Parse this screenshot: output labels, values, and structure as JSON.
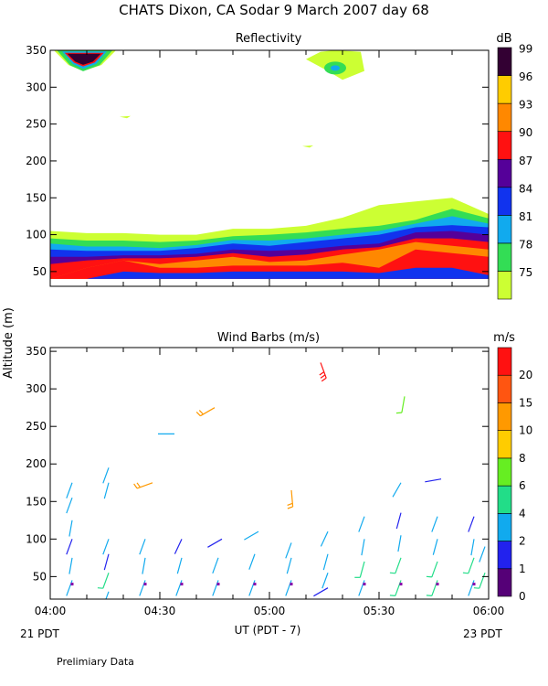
{
  "header": {
    "title": "CHATS Dixon, CA   Sodar    9 March 2007   day  68",
    "ylabel": "Altitude (m)",
    "xlabel": "UT  (PDT - 7)",
    "left_footer": "21 PDT",
    "right_footer": "23 PDT",
    "note": "Prelimiary Data"
  },
  "chart_data": [
    {
      "type": "heatmap",
      "title": "Reflectivity",
      "x_ticks": [
        "04:00",
        "04:30",
        "05:00",
        "05:30",
        "06:00"
      ],
      "y_ticks": [
        50,
        100,
        150,
        200,
        250,
        300,
        350
      ],
      "xlim": [
        "04:00",
        "06:00"
      ],
      "ylim": [
        30,
        350
      ],
      "colorbar": {
        "unit": "dB",
        "levels": [
          75,
          78,
          81,
          84,
          87,
          90,
          93,
          96,
          99
        ],
        "colors": [
          "#ccff33",
          "#33dd55",
          "#11aaee",
          "#1133ee",
          "#550099",
          "#ff1111",
          "#ff8800",
          "#ffcc00",
          "#330033"
        ]
      },
      "time_grid": [
        "04:00",
        "04:10",
        "04:20",
        "04:30",
        "04:40",
        "04:50",
        "05:00",
        "05:10",
        "05:20",
        "05:30",
        "05:40",
        "05:50",
        "06:00"
      ],
      "band_tops_m": [
        [
          40,
          40,
          40,
          40,
          40,
          40,
          40,
          40,
          40,
          40,
          40,
          40,
          40
        ],
        [
          40,
          40,
          50,
          48,
          48,
          50,
          50,
          50,
          50,
          48,
          55,
          55,
          45
        ],
        [
          40,
          55,
          65,
          55,
          55,
          58,
          58,
          58,
          62,
          55,
          80,
          75,
          70
        ],
        [
          40,
          55,
          65,
          60,
          65,
          70,
          63,
          65,
          73,
          80,
          90,
          85,
          80
        ],
        [
          60,
          65,
          68,
          68,
          70,
          75,
          70,
          73,
          80,
          83,
          95,
          95,
          90
        ],
        [
          70,
          70,
          72,
          72,
          74,
          80,
          78,
          80,
          85,
          88,
          103,
          105,
          100
        ],
        [
          80,
          78,
          78,
          78,
          82,
          88,
          85,
          90,
          95,
          100,
          110,
          113,
          110
        ],
        [
          88,
          84,
          84,
          82,
          86,
          93,
          92,
          95,
          100,
          105,
          115,
          125,
          115
        ],
        [
          95,
          92,
          92,
          90,
          92,
          98,
          100,
          103,
          108,
          112,
          120,
          135,
          122
        ],
        [
          105,
          102,
          102,
          100,
          100,
          108,
          108,
          112,
          123,
          140,
          145,
          150,
          128
        ]
      ],
      "blobs": [
        {
          "label": "cluster top-left",
          "shape": [
            [
              "04:01",
              350
            ],
            [
              "04:05",
              330
            ],
            [
              "04:09",
              322
            ],
            [
              "04:14",
              330
            ],
            [
              "04:18",
              350
            ]
          ],
          "color": "#ccff33"
        },
        {
          "label": "cluster top-right",
          "shape": [
            [
              "05:10",
              338
            ],
            [
              "05:16",
              322
            ],
            [
              "05:20",
              310
            ],
            [
              "05:26",
              322
            ],
            [
              "05:25",
              348
            ],
            [
              "05:18",
              350
            ],
            [
              "05:14",
              348
            ]
          ],
          "color": "#ccff33"
        },
        {
          "label": "patch 258",
          "shape": [
            [
              "04:19",
              260
            ],
            [
              "04:21",
              258
            ],
            [
              "04:22",
              261
            ]
          ],
          "color": "#ccff33"
        },
        {
          "label": "patch 218",
          "shape": [
            [
              "05:09",
              220
            ],
            [
              "05:11",
              218
            ],
            [
              "05:12",
              221
            ]
          ],
          "color": "#ccff33"
        }
      ]
    },
    {
      "type": "scatter",
      "title": "Wind Barbs (m/s)",
      "x_ticks": [
        "04:00",
        "04:30",
        "05:00",
        "05:30",
        "06:00"
      ],
      "y_ticks": [
        50,
        100,
        150,
        200,
        250,
        300,
        350
      ],
      "xlim": [
        "04:00",
        "06:00"
      ],
      "ylim": [
        20,
        355
      ],
      "colorbar": {
        "unit": "m/s",
        "levels": [
          0,
          1,
          2,
          4,
          6,
          8,
          10,
          15,
          20
        ],
        "colors": [
          "#550077",
          "#2222ee",
          "#11aaee",
          "#22dd88",
          "#66ee22",
          "#ffcc00",
          "#ff9900",
          "#ff5511",
          "#ff1111"
        ]
      },
      "barbs": [
        {
          "t": "04:06",
          "alt": 175,
          "speed": 2,
          "dir": 200
        },
        {
          "t": "04:06",
          "alt": 155,
          "speed": 2,
          "dir": 200
        },
        {
          "t": "04:06",
          "alt": 125,
          "speed": 2,
          "dir": 190
        },
        {
          "t": "04:06",
          "alt": 100,
          "speed": 1,
          "dir": 200
        },
        {
          "t": "04:06",
          "alt": 75,
          "speed": 2,
          "dir": 190
        },
        {
          "t": "04:06",
          "alt": 45,
          "speed": 2,
          "dir": 200
        },
        {
          "t": "04:06",
          "alt": 40,
          "speed": 0,
          "dir": 0
        },
        {
          "t": "04:16",
          "alt": 195,
          "speed": 2,
          "dir": 200
        },
        {
          "t": "04:16",
          "alt": 175,
          "speed": 2,
          "dir": 195
        },
        {
          "t": "04:16",
          "alt": 100,
          "speed": 2,
          "dir": 200
        },
        {
          "t": "04:16",
          "alt": 80,
          "speed": 1,
          "dir": 195
        },
        {
          "t": "04:16",
          "alt": 55,
          "speed": 4,
          "dir": 200
        },
        {
          "t": "04:16",
          "alt": 30,
          "speed": 2,
          "dir": 200
        },
        {
          "t": "04:26",
          "alt": 100,
          "speed": 2,
          "dir": 200
        },
        {
          "t": "04:26",
          "alt": 75,
          "speed": 2,
          "dir": 190
        },
        {
          "t": "04:26",
          "alt": 45,
          "speed": 2,
          "dir": 200
        },
        {
          "t": "04:26",
          "alt": 40,
          "speed": 0,
          "dir": 0
        },
        {
          "t": "04:28",
          "alt": 175,
          "speed": 10,
          "dir": 250
        },
        {
          "t": "04:36",
          "alt": 100,
          "speed": 1,
          "dir": 205
        },
        {
          "t": "04:36",
          "alt": 75,
          "speed": 2,
          "dir": 195
        },
        {
          "t": "04:36",
          "alt": 45,
          "speed": 2,
          "dir": 200
        },
        {
          "t": "04:36",
          "alt": 40,
          "speed": 0,
          "dir": 0
        },
        {
          "t": "04:34",
          "alt": 240,
          "speed": 2,
          "dir": 270
        },
        {
          "t": "04:45",
          "alt": 275,
          "speed": 10,
          "dir": 240
        },
        {
          "t": "04:47",
          "alt": 100,
          "speed": 1,
          "dir": 240
        },
        {
          "t": "04:46",
          "alt": 75,
          "speed": 2,
          "dir": 200
        },
        {
          "t": "04:46",
          "alt": 45,
          "speed": 2,
          "dir": 200
        },
        {
          "t": "04:46",
          "alt": 40,
          "speed": 0,
          "dir": 0
        },
        {
          "t": "04:57",
          "alt": 110,
          "speed": 2,
          "dir": 240
        },
        {
          "t": "04:56",
          "alt": 80,
          "speed": 2,
          "dir": 200
        },
        {
          "t": "04:56",
          "alt": 45,
          "speed": 2,
          "dir": 200
        },
        {
          "t": "04:56",
          "alt": 40,
          "speed": 0,
          "dir": 0
        },
        {
          "t": "05:06",
          "alt": 165,
          "speed": 10,
          "dir": 175
        },
        {
          "t": "05:06",
          "alt": 95,
          "speed": 2,
          "dir": 200
        },
        {
          "t": "05:06",
          "alt": 75,
          "speed": 2,
          "dir": 195
        },
        {
          "t": "05:06",
          "alt": 45,
          "speed": 2,
          "dir": 200
        },
        {
          "t": "05:06",
          "alt": 40,
          "speed": 0,
          "dir": 0
        },
        {
          "t": "05:14",
          "alt": 335,
          "speed": 20,
          "dir": 160
        },
        {
          "t": "05:16",
          "alt": 110,
          "speed": 2,
          "dir": 205
        },
        {
          "t": "05:16",
          "alt": 80,
          "speed": 2,
          "dir": 195
        },
        {
          "t": "05:16",
          "alt": 55,
          "speed": 2,
          "dir": 200
        },
        {
          "t": "05:16",
          "alt": 35,
          "speed": 1,
          "dir": 240
        },
        {
          "t": "05:26",
          "alt": 130,
          "speed": 2,
          "dir": 200
        },
        {
          "t": "05:26",
          "alt": 100,
          "speed": 2,
          "dir": 190
        },
        {
          "t": "05:26",
          "alt": 70,
          "speed": 4,
          "dir": 195
        },
        {
          "t": "05:26",
          "alt": 45,
          "speed": 2,
          "dir": 200
        },
        {
          "t": "05:26",
          "alt": 40,
          "speed": 0,
          "dir": 0
        },
        {
          "t": "05:36",
          "alt": 175,
          "speed": 2,
          "dir": 210
        },
        {
          "t": "05:36",
          "alt": 135,
          "speed": 1,
          "dir": 195
        },
        {
          "t": "05:36",
          "alt": 105,
          "speed": 2,
          "dir": 190
        },
        {
          "t": "05:36",
          "alt": 75,
          "speed": 4,
          "dir": 200
        },
        {
          "t": "05:36",
          "alt": 45,
          "speed": 4,
          "dir": 200
        },
        {
          "t": "05:36",
          "alt": 40,
          "speed": 0,
          "dir": 0
        },
        {
          "t": "05:37",
          "alt": 290,
          "speed": 6,
          "dir": 190
        },
        {
          "t": "05:47",
          "alt": 180,
          "speed": 1,
          "dir": 260
        },
        {
          "t": "05:46",
          "alt": 130,
          "speed": 2,
          "dir": 200
        },
        {
          "t": "05:46",
          "alt": 100,
          "speed": 2,
          "dir": 195
        },
        {
          "t": "05:46",
          "alt": 70,
          "speed": 4,
          "dir": 200
        },
        {
          "t": "05:46",
          "alt": 45,
          "speed": 4,
          "dir": 200
        },
        {
          "t": "05:46",
          "alt": 40,
          "speed": 0,
          "dir": 0
        },
        {
          "t": "05:56",
          "alt": 130,
          "speed": 1,
          "dir": 200
        },
        {
          "t": "05:56",
          "alt": 100,
          "speed": 2,
          "dir": 190
        },
        {
          "t": "05:56",
          "alt": 75,
          "speed": 4,
          "dir": 200
        },
        {
          "t": "05:56",
          "alt": 45,
          "speed": 2,
          "dir": 200
        },
        {
          "t": "05:56",
          "alt": 40,
          "speed": 0,
          "dir": 0
        },
        {
          "t": "05:59",
          "alt": 90,
          "speed": 2,
          "dir": 200
        },
        {
          "t": "05:59",
          "alt": 55,
          "speed": 4,
          "dir": 200
        }
      ]
    }
  ]
}
